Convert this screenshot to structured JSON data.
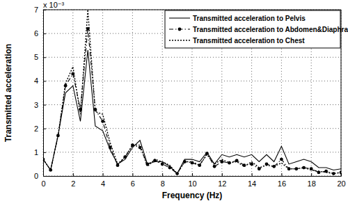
{
  "chart_data": {
    "type": "line",
    "xlabel": "Frequency (Hz)",
    "ylabel": "Transmitted acceleration",
    "annotations": [
      "x 10⁻³"
    ],
    "x": [
      0,
      0.5,
      1,
      1.5,
      2,
      2.5,
      3,
      3.5,
      4,
      4.5,
      5,
      5.5,
      6,
      6.5,
      7,
      7.5,
      8,
      8.5,
      9,
      9.5,
      10,
      10.5,
      11,
      11.5,
      12,
      12.5,
      13,
      13.5,
      14,
      14.5,
      15,
      15.5,
      16,
      16.5,
      17,
      17.5,
      18,
      18.5,
      19,
      19.5,
      20
    ],
    "series": [
      {
        "name": "Transmitted acceleration  to Pelvis",
        "color": "#000000",
        "line_style": "solid",
        "marker": "none",
        "values": [
          0.7,
          0.25,
          1.7,
          3.5,
          3.8,
          2.3,
          5.3,
          2.1,
          1.9,
          1.1,
          0.5,
          0.7,
          1.2,
          1.5,
          0.5,
          0.6,
          0.6,
          0.4,
          0.1,
          0.7,
          0.7,
          0.6,
          1.0,
          0.5,
          0.9,
          0.8,
          0.9,
          0.8,
          0.9,
          0.6,
          0.9,
          0.6,
          1.25,
          0.5,
          0.6,
          0.7,
          0.6,
          0.35,
          0.35,
          0.25,
          0.3
        ]
      },
      {
        "name": "Transmitted acceleration to Abdomen&Diaphragm",
        "color": "#000000",
        "line_style": "dashdot",
        "marker": "circle",
        "values": [
          0.7,
          0.25,
          1.7,
          3.8,
          4.3,
          2.8,
          6.2,
          2.8,
          2.3,
          1.2,
          0.45,
          0.8,
          1.3,
          1.2,
          0.5,
          0.65,
          0.5,
          0.35,
          0.1,
          0.6,
          0.55,
          0.45,
          0.95,
          0.4,
          0.6,
          0.55,
          0.65,
          0.45,
          0.5,
          0.3,
          0.5,
          0.4,
          0.7,
          0.3,
          0.3,
          0.35,
          0.3,
          0.15,
          0.2,
          0.1,
          0.15
        ]
      },
      {
        "name": "Transmitted acceleration to Chest",
        "color": "#000000",
        "line_style": "dotted",
        "marker": "none",
        "values": [
          0.7,
          0.25,
          1.7,
          3.9,
          4.6,
          2.6,
          7.0,
          2.7,
          2.6,
          1.4,
          0.5,
          0.8,
          1.3,
          1.3,
          0.4,
          0.7,
          0.6,
          0.45,
          0.1,
          0.6,
          0.6,
          0.45,
          0.9,
          0.5,
          0.7,
          0.55,
          0.6,
          0.4,
          0.6,
          0.35,
          0.45,
          0.4,
          0.55,
          0.3,
          0.3,
          0.35,
          0.25,
          0.2,
          0.15,
          0.1,
          0.15
        ]
      }
    ],
    "xlim": [
      0,
      20
    ],
    "xticks": [
      0,
      2,
      4,
      6,
      8,
      10,
      12,
      14,
      16,
      18,
      20
    ],
    "ylim": [
      0,
      7
    ],
    "yticks": [
      0,
      1,
      2,
      3,
      4,
      5,
      6,
      7
    ],
    "grid": true,
    "legend": "upper right"
  }
}
